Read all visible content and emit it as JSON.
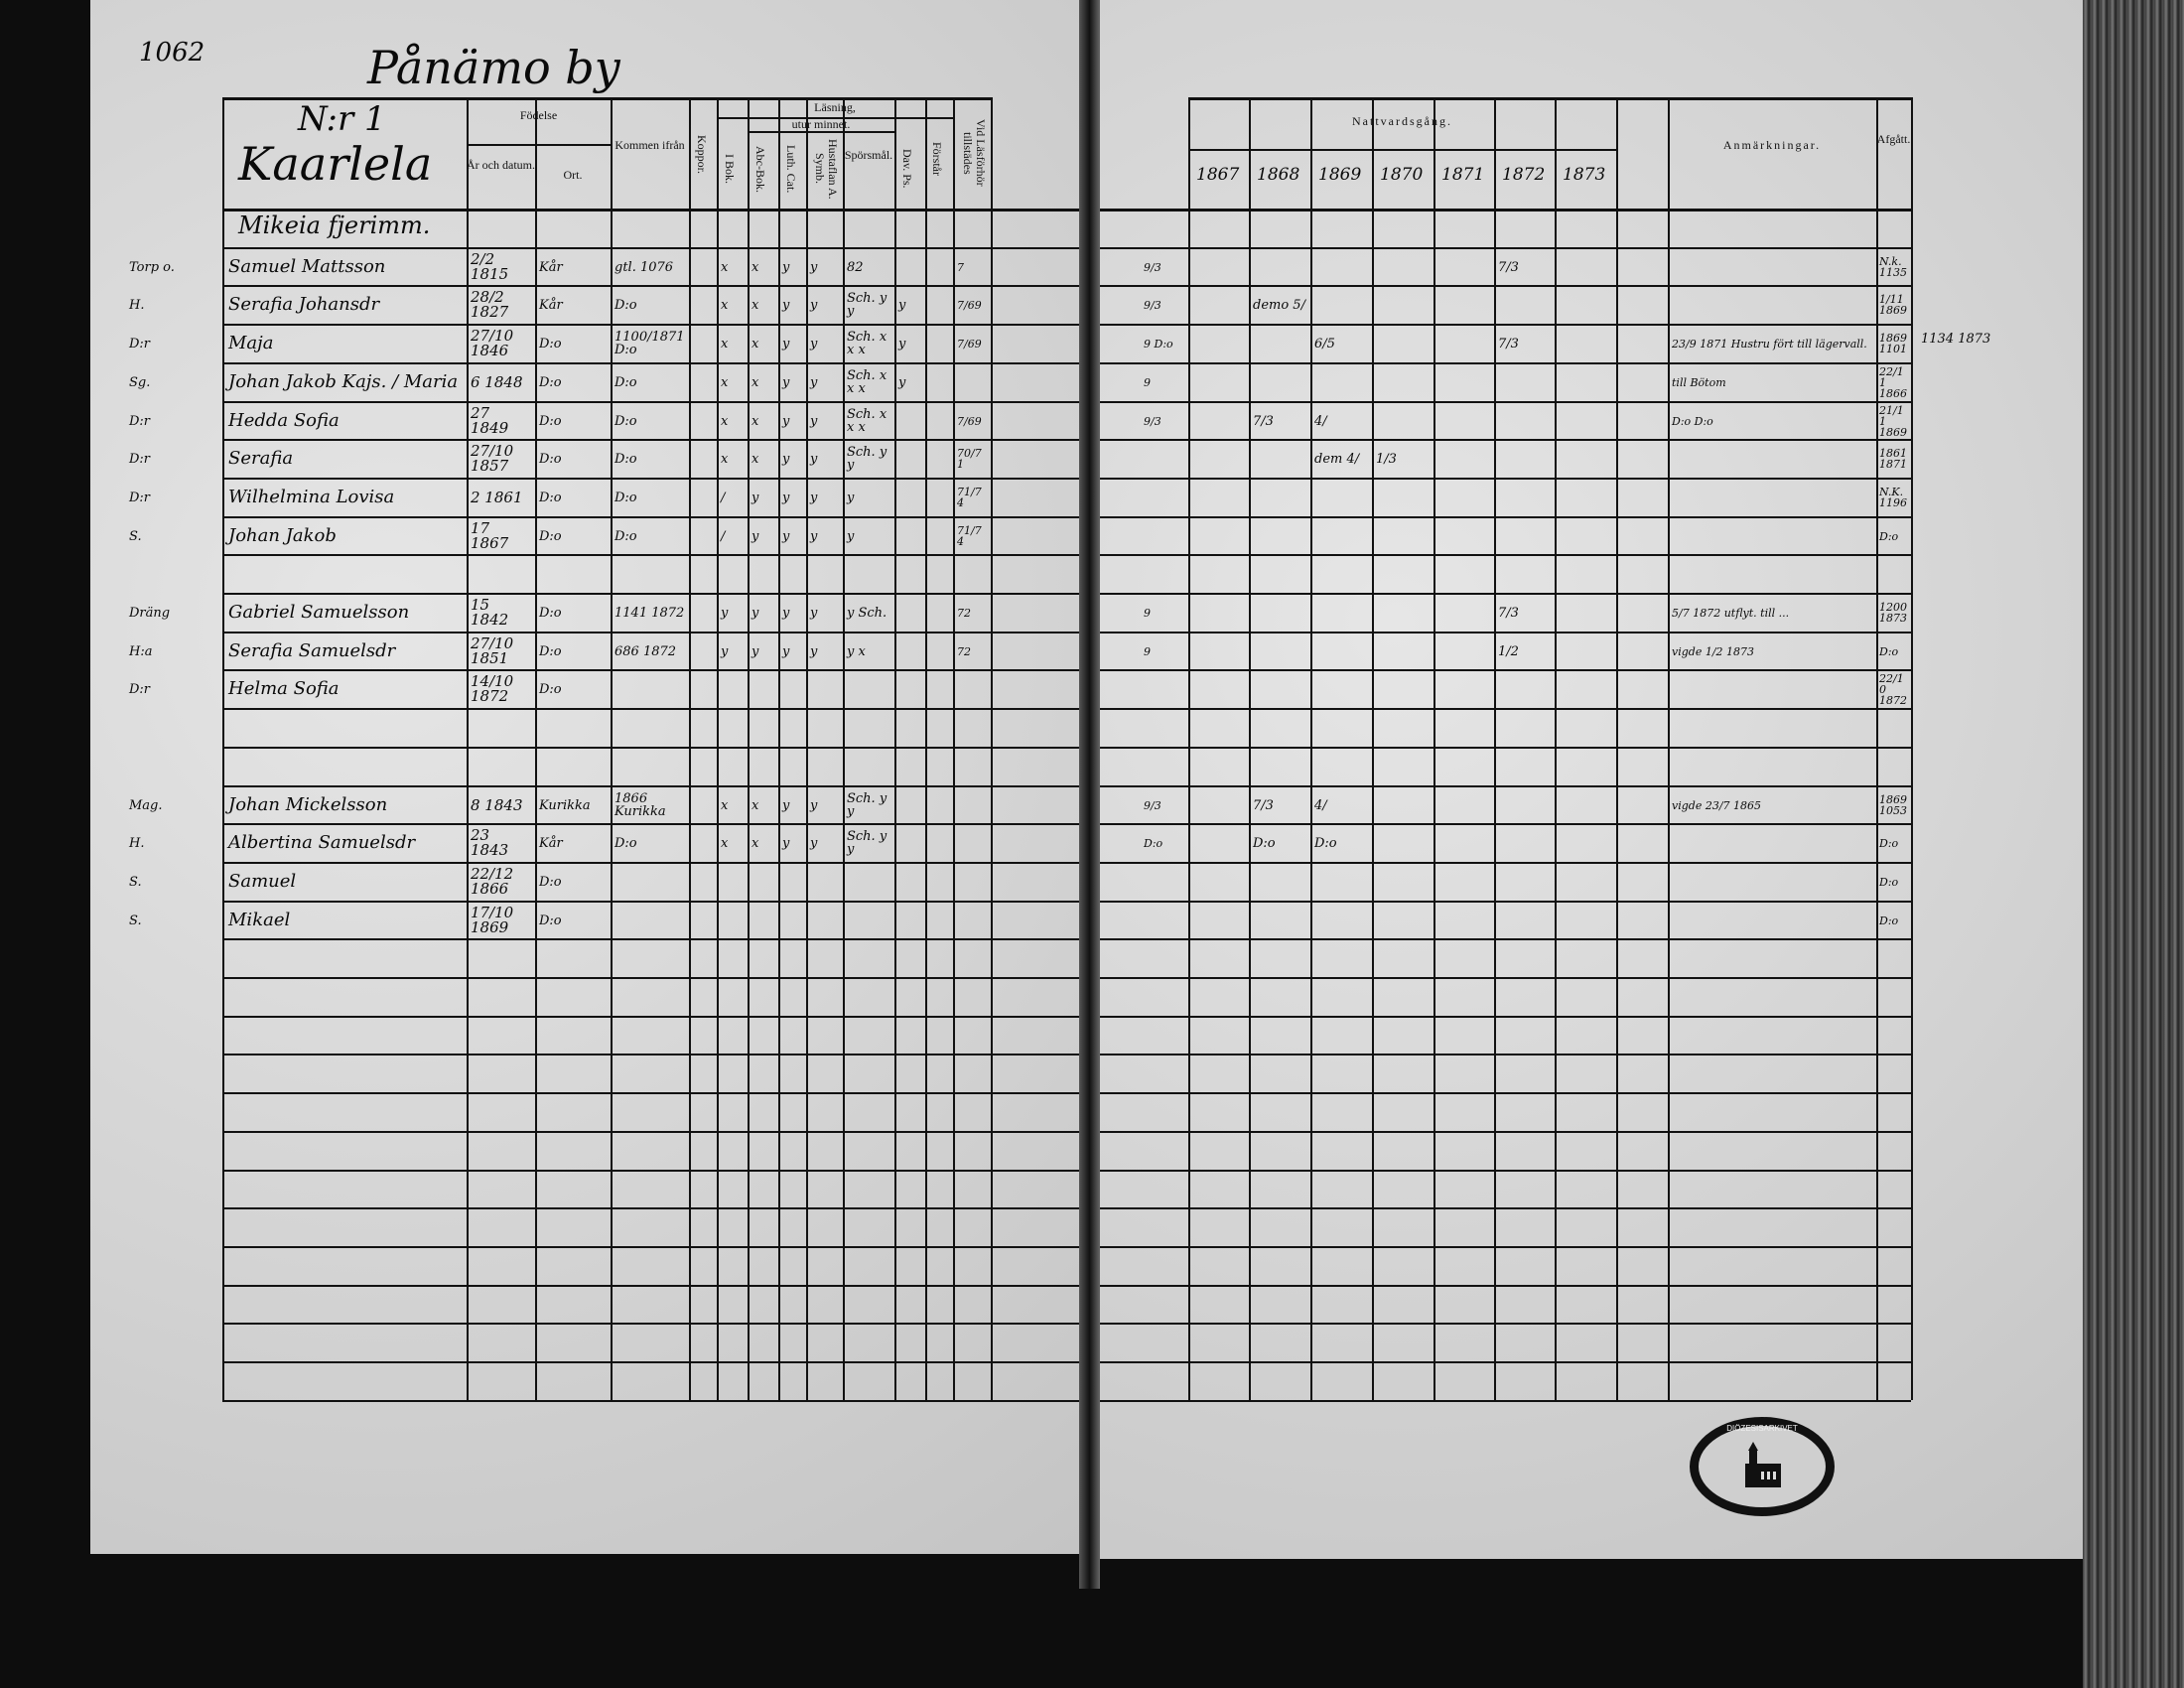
{
  "page_number": "1062",
  "village": "Pånämo by",
  "household": {
    "number": "N:r 1",
    "farm": "Kaarlela",
    "sub": "Mikeia fjerimm."
  },
  "left_headers": {
    "birth": "Födelse",
    "year_date": "År och datum.",
    "place": "Ort.",
    "came_from": "Kommen ifrån",
    "smallpox": "Koppor.",
    "reading": "Läsning,",
    "by_heart": "utur minnet.",
    "book": "I Bok.",
    "abc": "Abc-Bok.",
    "luth": "Luth. Cat.",
    "hustaflan": "Hustaflan A. Symb.",
    "questions": "Spörsmål.",
    "psalms": "Dav. Ps.",
    "understanding": "Förstår",
    "present": "Vid Läsförhör tillstädes"
  },
  "right_headers": {
    "communion": "Nattvardsgång.",
    "years": [
      "1867",
      "1868",
      "1869",
      "1870",
      "1871",
      "1872",
      "1873"
    ],
    "remarks": "Anmärkningar.",
    "departed": "Afgått."
  },
  "rows": [
    {
      "mark": "",
      "name": "",
      "born": "",
      "place": "",
      "from": "",
      "reading": [
        "",
        "",
        "",
        "",
        "",
        ""
      ],
      "present": "",
      "pre": "",
      "years": [
        "",
        "",
        "",
        "",
        "",
        "",
        ""
      ],
      "remark": "",
      "departed": ""
    },
    {
      "mark": "Torp o.",
      "name": "Samuel Mattsson",
      "born": "2/2 1815",
      "place": "Kår",
      "from": "gtl. 1076",
      "reading": [
        "x",
        "x",
        "y",
        "y",
        "82",
        ""
      ],
      "present": "7",
      "pre": "9/3",
      "years": [
        "",
        "",
        "",
        "",
        "",
        "7/3",
        ""
      ],
      "remark": "",
      "departed": "N.k. 1135"
    },
    {
      "mark": "H.",
      "name": "Serafia Johansdr",
      "born": "28/2 1827",
      "place": "Kår",
      "from": "D:o",
      "reading": [
        "x",
        "x",
        "y",
        "y",
        "Sch. y y",
        "y"
      ],
      "present": "7/69",
      "pre": "9/3",
      "years": [
        "",
        "demo 5/",
        "",
        "",
        "",
        "",
        ""
      ],
      "remark": "",
      "departed": "1/11 1869"
    },
    {
      "mark": "D:r",
      "name": "Maja",
      "born": "27/10 1846",
      "place": "D:o",
      "from": "1100/1871 D:o",
      "reading": [
        "x",
        "x",
        "y",
        "y",
        "Sch. x x x",
        "y"
      ],
      "present": "7/69",
      "pre": "9 D:o",
      "years": [
        "",
        "",
        "6/5",
        "",
        "",
        "7/3",
        ""
      ],
      "remark": "23/9 1871 Hustru fört till lägervall.",
      "departed": "1869 1101"
    },
    {
      "mark": "Sg.",
      "name": "Johan Jakob Kajs. / Maria",
      "born": "6 1848",
      "place": "D:o",
      "from": "D:o",
      "reading": [
        "x",
        "x",
        "y",
        "y",
        "Sch. x x x",
        "y"
      ],
      "present": "",
      "pre": "9",
      "years": [
        "",
        "",
        "",
        "",
        "",
        "",
        ""
      ],
      "remark": "till Bötom",
      "departed": "22/11 1866"
    },
    {
      "mark": "D:r",
      "name": "Hedda Sofia",
      "born": "27 1849",
      "place": "D:o",
      "from": "D:o",
      "reading": [
        "x",
        "x",
        "y",
        "y",
        "Sch. x x x",
        ""
      ],
      "present": "7/69",
      "pre": "9/3",
      "years": [
        "",
        "7/3",
        "4/",
        "",
        "",
        "",
        ""
      ],
      "remark": "D:o D:o",
      "departed": "21/11 1869"
    },
    {
      "mark": "D:r",
      "name": "Serafia",
      "born": "27/10 1857",
      "place": "D:o",
      "from": "D:o",
      "reading": [
        "x",
        "x",
        "y",
        "y",
        "Sch. y y",
        ""
      ],
      "present": "70/71",
      "pre": "",
      "years": [
        "",
        "",
        "dem 4/",
        "1/3",
        "",
        "",
        ""
      ],
      "remark": "",
      "departed": "1861 1871"
    },
    {
      "mark": "D:r",
      "name": "Wilhelmina Lovisa",
      "born": "2 1861",
      "place": "D:o",
      "from": "D:o",
      "reading": [
        "/",
        "y",
        "y",
        "y",
        "y",
        ""
      ],
      "present": "71/74",
      "pre": "",
      "years": [
        "",
        "",
        "",
        "",
        "",
        "",
        ""
      ],
      "remark": "",
      "departed": "N.K. 1196"
    },
    {
      "mark": "S.",
      "name": "Johan Jakob",
      "born": "17 1867",
      "place": "D:o",
      "from": "D:o",
      "reading": [
        "/",
        "y",
        "y",
        "y",
        "y",
        ""
      ],
      "present": "71/74",
      "pre": "",
      "years": [
        "",
        "",
        "",
        "",
        "",
        "",
        ""
      ],
      "remark": "",
      "departed": "D:o"
    },
    {
      "mark": "",
      "name": "",
      "born": "",
      "place": "",
      "from": "",
      "reading": [
        "",
        "",
        "",
        "",
        "",
        ""
      ],
      "present": "",
      "pre": "",
      "years": [
        "",
        "",
        "",
        "",
        "",
        "",
        ""
      ],
      "remark": "",
      "departed": ""
    },
    {
      "mark": "Dräng",
      "name": "Gabriel Samuelsson",
      "born": "15 1842",
      "place": "D:o",
      "from": "1141 1872",
      "reading": [
        "y",
        "y",
        "y",
        "y",
        "y Sch.",
        ""
      ],
      "present": "72",
      "pre": "9",
      "years": [
        "",
        "",
        "",
        "",
        "",
        "7/3",
        ""
      ],
      "remark": "5/7 1872 utflyt. till ...",
      "departed": "1200 1873"
    },
    {
      "mark": "H:a",
      "name": "Serafia Samuelsdr",
      "born": "27/10 1851",
      "place": "D:o",
      "from": "686 1872",
      "reading": [
        "y",
        "y",
        "y",
        "y",
        "y x",
        ""
      ],
      "present": "72",
      "pre": "9",
      "years": [
        "",
        "",
        "",
        "",
        "",
        "1/2",
        ""
      ],
      "remark": "vigde 1/2 1873",
      "departed": "D:o"
    },
    {
      "mark": "D:r",
      "name": "Helma Sofia",
      "born": "14/10 1872",
      "place": "D:o",
      "from": "",
      "reading": [
        "",
        "",
        "",
        "",
        "",
        ""
      ],
      "present": "",
      "pre": "",
      "years": [
        "",
        "",
        "",
        "",
        "",
        "",
        ""
      ],
      "remark": "",
      "departed": "22/10 1872"
    },
    {
      "mark": "",
      "name": "",
      "born": "",
      "place": "",
      "from": "",
      "reading": [
        "",
        "",
        "",
        "",
        "",
        ""
      ],
      "present": "",
      "pre": "",
      "years": [
        "",
        "",
        "",
        "",
        "",
        "",
        ""
      ],
      "remark": "",
      "departed": ""
    },
    {
      "mark": "",
      "name": "",
      "born": "",
      "place": "",
      "from": "",
      "reading": [
        "",
        "",
        "",
        "",
        "",
        ""
      ],
      "present": "",
      "pre": "",
      "years": [
        "",
        "",
        "",
        "",
        "",
        "",
        ""
      ],
      "remark": "",
      "departed": ""
    },
    {
      "mark": "Mag.",
      "name": "Johan Mickelsson",
      "born": "8 1843",
      "place": "Kurikka",
      "from": "1866 Kurikka",
      "reading": [
        "x",
        "x",
        "y",
        "y",
        "Sch. y y",
        ""
      ],
      "present": "",
      "pre": "9/3",
      "years": [
        "",
        "7/3",
        "4/",
        "",
        "",
        "",
        ""
      ],
      "remark": "vigde 23/7 1865",
      "departed": "1869 1053"
    },
    {
      "mark": "H.",
      "name": "Albertina Samuelsdr",
      "born": "23 1843",
      "place": "Kår",
      "from": "D:o",
      "reading": [
        "x",
        "x",
        "y",
        "y",
        "Sch. y y",
        ""
      ],
      "present": "",
      "pre": "D:o",
      "years": [
        "",
        "D:o",
        "D:o",
        "",
        "",
        "",
        ""
      ],
      "remark": "",
      "departed": "D:o"
    },
    {
      "mark": "S.",
      "name": "Samuel",
      "born": "22/12 1866",
      "place": "D:o",
      "from": "",
      "reading": [
        "",
        "",
        "",
        "",
        "",
        ""
      ],
      "present": "",
      "pre": "",
      "years": [
        "",
        "",
        "",
        "",
        "",
        "",
        ""
      ],
      "remark": "",
      "departed": "D:o"
    },
    {
      "mark": "S.",
      "name": "Mikael",
      "born": "17/10 1869",
      "place": "D:o",
      "from": "",
      "reading": [
        "",
        "",
        "",
        "",
        "",
        ""
      ],
      "present": "",
      "pre": "",
      "years": [
        "",
        "",
        "",
        "",
        "",
        "",
        ""
      ],
      "remark": "",
      "departed": "D:o"
    }
  ],
  "margin_note": "1134 1873",
  "stamp_text": "DIÖZESISARKIVET"
}
